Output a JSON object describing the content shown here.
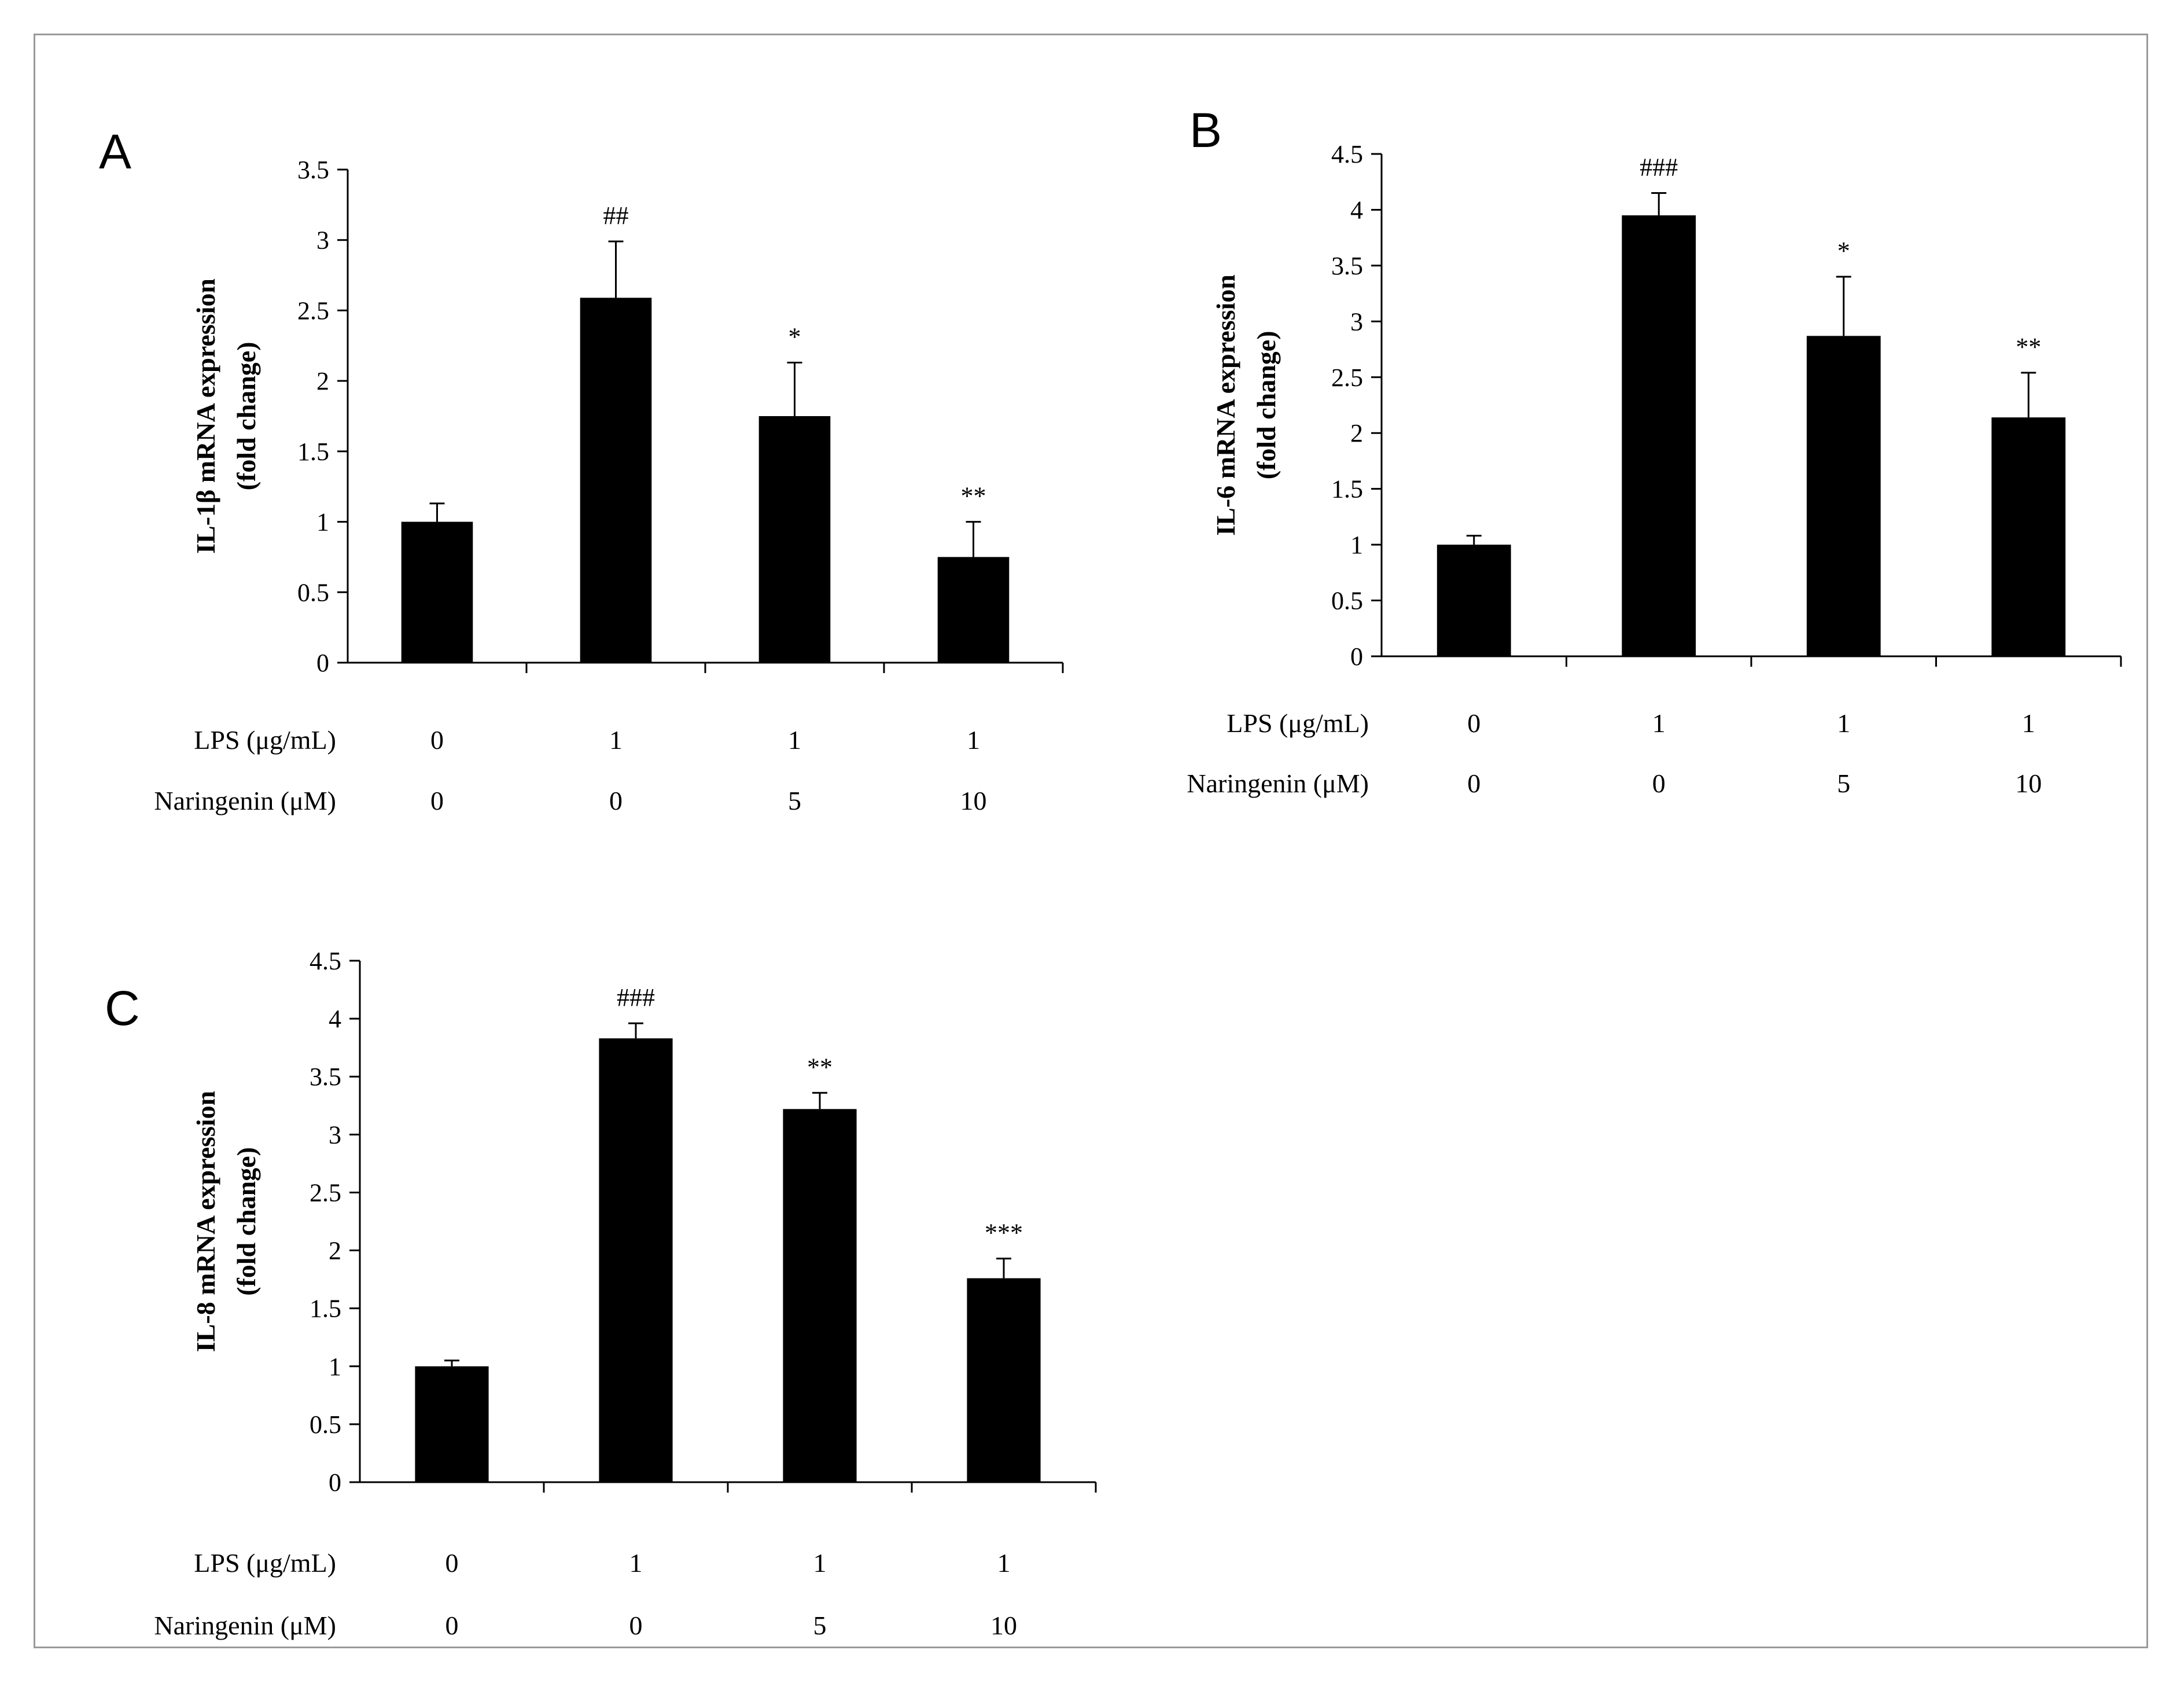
{
  "chart_data": [
    {
      "panel_label": "A",
      "type": "bar",
      "ylabel_line1": "IL-1β mRNA expression",
      "ylabel_line2": "(fold change)",
      "ylim": [
        0,
        3.5
      ],
      "yticks": [
        "0",
        "0.5",
        "1",
        "1.5",
        "2",
        "2.5",
        "3",
        "3.5"
      ],
      "values": [
        1.0,
        2.59,
        1.75,
        0.75
      ],
      "errors": [
        0.13,
        0.4,
        0.38,
        0.25
      ],
      "annotations": [
        "",
        "##",
        "*",
        "**"
      ],
      "conditions": [
        {
          "label": "LPS (μg/mL)",
          "values": [
            "0",
            "1",
            "1",
            "1"
          ]
        },
        {
          "label": "Naringenin (μM)",
          "values": [
            "0",
            "0",
            "5",
            "10"
          ]
        }
      ]
    },
    {
      "panel_label": "B",
      "type": "bar",
      "ylabel_line1": "IL-6 mRNA expression",
      "ylabel_line2": "(fold change)",
      "ylim": [
        0,
        4.5
      ],
      "yticks": [
        "0",
        "0.5",
        "1",
        "1.5",
        "2",
        "2.5",
        "3",
        "3.5",
        "4",
        "4.5"
      ],
      "values": [
        1.0,
        3.95,
        2.87,
        2.14
      ],
      "errors": [
        0.08,
        0.2,
        0.53,
        0.4
      ],
      "annotations": [
        "",
        "###",
        "*",
        "**"
      ],
      "conditions": [
        {
          "label": "LPS (μg/mL)",
          "values": [
            "0",
            "1",
            "1",
            "1"
          ]
        },
        {
          "label": "Naringenin (μM)",
          "values": [
            "0",
            "0",
            "5",
            "10"
          ]
        }
      ]
    },
    {
      "panel_label": "C",
      "type": "bar",
      "ylabel_line1": "IL-8 mRNA expression",
      "ylabel_line2": "(fold change)",
      "ylim": [
        0,
        4.5
      ],
      "yticks": [
        "0",
        "0.5",
        "1",
        "1.5",
        "2",
        "2.5",
        "3",
        "3.5",
        "4",
        "4.5"
      ],
      "values": [
        1.0,
        3.83,
        3.22,
        1.76
      ],
      "errors": [
        0.05,
        0.13,
        0.14,
        0.17
      ],
      "annotations": [
        "",
        "###",
        "**",
        "***"
      ],
      "conditions": [
        {
          "label": "LPS (μg/mL)",
          "values": [
            "0",
            "1",
            "1",
            "1"
          ]
        },
        {
          "label": "Naringenin (μM)",
          "values": [
            "0",
            "0",
            "5",
            "10"
          ]
        }
      ]
    }
  ]
}
